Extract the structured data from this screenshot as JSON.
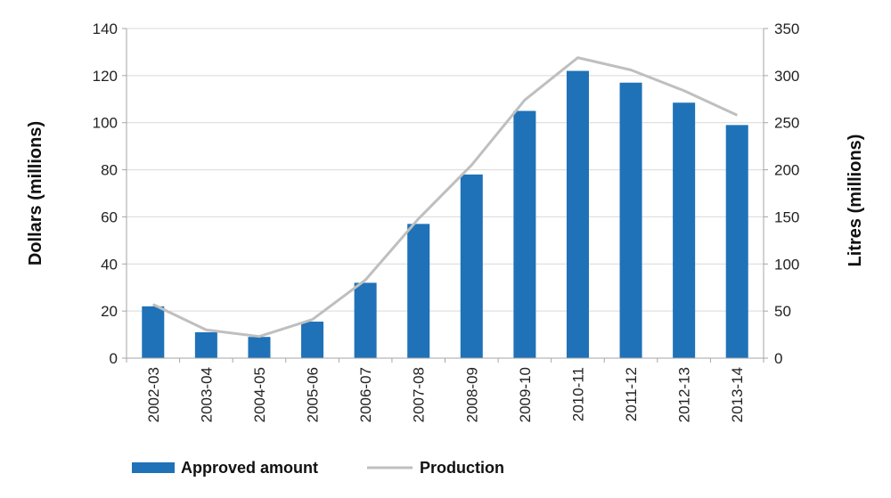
{
  "chart_data": {
    "type": "bar",
    "categories": [
      "2002-03",
      "2003-04",
      "2004-05",
      "2005-06",
      "2006-07",
      "2007-08",
      "2008-09",
      "2009-10",
      "2010-11",
      "2011-12",
      "2012-13",
      "2013-14"
    ],
    "series": [
      {
        "name": "Approved amount",
        "type": "bar",
        "axis": "left",
        "color": "#1f72b8",
        "values": [
          22,
          11,
          9,
          15.5,
          32,
          57,
          78,
          105,
          122,
          117,
          108.5,
          99
        ]
      },
      {
        "name": "Production",
        "type": "line",
        "axis": "right",
        "color": "#bfbfbf",
        "values": [
          57,
          30,
          23,
          41,
          83,
          148,
          205,
          274,
          319,
          306,
          284,
          258
        ]
      }
    ],
    "ylabel": "Dollars (millions)",
    "y2label": "Litres (millions)",
    "ylim": [
      0,
      140
    ],
    "y2lim": [
      0,
      350
    ],
    "yticks": [
      "0",
      "20",
      "40",
      "60",
      "80",
      "100",
      "120",
      "140"
    ],
    "y2ticks": [
      "0",
      "50",
      "100",
      "150",
      "200",
      "250",
      "300",
      "350"
    ],
    "grid": true,
    "legend_position": "bottom"
  }
}
